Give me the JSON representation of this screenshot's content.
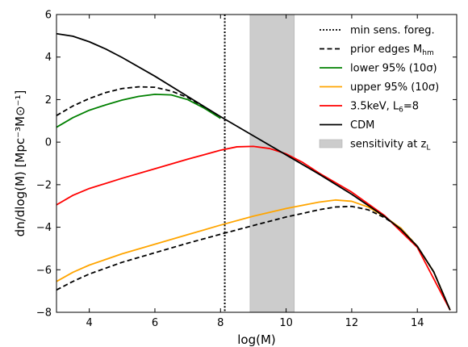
{
  "chart_data": {
    "type": "line",
    "xlabel": "log(M)",
    "ylabel": "dn/dlog(M) [Mpc⁻³M⊙⁻¹]",
    "xlim": [
      3,
      15.2
    ],
    "ylim": [
      -8,
      6
    ],
    "xticks": [
      4,
      6,
      8,
      10,
      12,
      14
    ],
    "yticks": [
      -8,
      -6,
      -4,
      -2,
      0,
      2,
      4,
      6
    ],
    "legend_position": "top-right",
    "grid": false,
    "vline": {
      "name": "min sens. foreg.",
      "x": 8.13,
      "style": "dotted",
      "color": "#000000"
    },
    "band": {
      "name": "sensitivity at z_L",
      "x0": 8.9,
      "x1": 10.25,
      "color": "#cccccc"
    },
    "series": [
      {
        "name": "prior edges M_hm",
        "style": "dashed",
        "color": "#000000",
        "x": [
          3,
          3.5,
          4,
          4.5,
          5,
          5.5,
          6,
          6.5,
          7,
          7.5,
          8
        ],
        "y": [
          1.25,
          1.7,
          2.05,
          2.33,
          2.52,
          2.6,
          2.58,
          2.4,
          2.1,
          1.65,
          1.12
        ]
      },
      {
        "name": "prior edges M_hm (lower)",
        "style": "dashed",
        "color": "#000000",
        "x": [
          3,
          3.5,
          4,
          5,
          6,
          7,
          8,
          9,
          10,
          11,
          11.5,
          12,
          12.5,
          13,
          13.5,
          14,
          14.5,
          15
        ],
        "y": [
          -6.95,
          -6.55,
          -6.2,
          -5.65,
          -5.2,
          -4.75,
          -4.33,
          -3.92,
          -3.52,
          -3.18,
          -3.05,
          -3.02,
          -3.18,
          -3.55,
          -4.05,
          -4.9,
          -6.1,
          -7.9
        ]
      },
      {
        "name": "lower 95% (10σ)",
        "style": "solid",
        "color": "#008000",
        "x": [
          3,
          3.5,
          4,
          4.5,
          5,
          5.5,
          6,
          6.5,
          7,
          7.5,
          8
        ],
        "y": [
          0.7,
          1.15,
          1.5,
          1.75,
          1.98,
          2.15,
          2.25,
          2.22,
          2.0,
          1.6,
          1.12
        ]
      },
      {
        "name": "upper 95% (10σ)",
        "style": "solid",
        "color": "#ffa500",
        "x": [
          3,
          3.5,
          4,
          5,
          6,
          7,
          8,
          9,
          10,
          11,
          11.5,
          12,
          12.5,
          13,
          13.5,
          14,
          14.5,
          15
        ],
        "y": [
          -6.55,
          -6.12,
          -5.78,
          -5.25,
          -4.8,
          -4.35,
          -3.9,
          -3.48,
          -3.12,
          -2.82,
          -2.72,
          -2.78,
          -3.05,
          -3.5,
          -4.05,
          -4.9,
          -6.1,
          -7.9
        ]
      },
      {
        "name": "3.5keV, L₆=8",
        "style": "solid",
        "color": "#ff0000",
        "x": [
          3,
          3.5,
          4,
          5,
          6,
          7,
          8,
          8.5,
          9,
          9.5,
          10,
          10.5,
          11,
          12,
          13,
          14,
          15
        ],
        "y": [
          -2.95,
          -2.5,
          -2.18,
          -1.7,
          -1.25,
          -0.8,
          -0.38,
          -0.22,
          -0.2,
          -0.3,
          -0.55,
          -0.95,
          -1.45,
          -2.35,
          -3.45,
          -4.95,
          -7.9
        ]
      },
      {
        "name": "CDM",
        "style": "solid",
        "color": "#000000",
        "x": [
          3,
          3.5,
          4,
          4.5,
          5,
          6,
          7,
          8,
          9,
          10,
          11,
          12,
          13,
          13.5,
          14,
          14.5,
          15
        ],
        "y": [
          5.1,
          4.98,
          4.72,
          4.38,
          3.98,
          3.1,
          2.15,
          1.2,
          0.3,
          -0.6,
          -1.5,
          -2.45,
          -3.5,
          -4.1,
          -4.9,
          -6.1,
          -7.9
        ]
      }
    ],
    "legend": [
      {
        "label": "min sens. foreg.",
        "style": "dotted",
        "color": "#000000"
      },
      {
        "label": "prior edges M",
        "sub": "hm",
        "style": "dashed",
        "color": "#000000"
      },
      {
        "label": "lower 95% (10σ)",
        "style": "solid",
        "color": "#008000"
      },
      {
        "label": "upper 95% (10σ)",
        "style": "solid",
        "color": "#ffa500"
      },
      {
        "label": "3.5keV, L",
        "sub": "6",
        "tail": "=8",
        "style": "solid",
        "color": "#ff0000"
      },
      {
        "label": "CDM",
        "style": "solid",
        "color": "#000000"
      },
      {
        "label": "sensitivity at z",
        "sub": "L",
        "style": "patch",
        "color": "#cccccc"
      }
    ]
  }
}
